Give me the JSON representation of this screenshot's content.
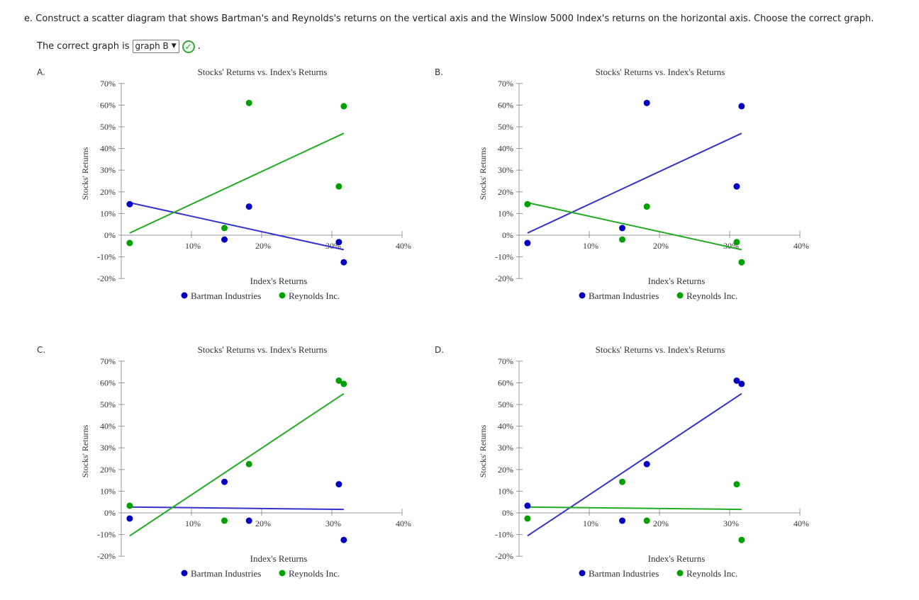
{
  "question": "e. Construct a scatter diagram that shows Bartman's and Reynolds's returns on the vertical axis and the Winslow 5000 Index's returns on the horizontal axis. Choose the correct graph.",
  "answer": {
    "prefix": "The correct graph is",
    "selected": "graph B",
    "suffix": ".",
    "status_icon": "check-circle-icon",
    "status_color": "#3aa33a"
  },
  "colors": {
    "bartman": "#0000c0",
    "reynolds": "#00a000",
    "bartman_line": "#3333cc",
    "reynolds_line": "#22aa22"
  },
  "chart_data": [
    {
      "panel": "A.",
      "type": "scatter",
      "title": "Stocks' Returns vs. Index's Returns",
      "xlabel": "Index's Returns",
      "ylabel": "Stocks' Returns",
      "xlim": [
        0,
        40
      ],
      "ylim": [
        -20,
        70
      ],
      "xticks": [
        "10%",
        "20%",
        "30%",
        "40%"
      ],
      "yticks": [
        "70%",
        "60%",
        "50%",
        "40%",
        "30%",
        "20%",
        "10%",
        "0%",
        "-10%",
        "-20%"
      ],
      "legend": "bottom",
      "series": [
        {
          "name": "Bartman Industries",
          "color": "#0000c0",
          "points": [
            [
              1.2,
              14.3
            ],
            [
              14.7,
              -2
            ],
            [
              18.2,
              13.2
            ],
            [
              31,
              -3.2
            ],
            [
              31.7,
              -12.5
            ]
          ],
          "trend": [
            [
              1.2,
              15
            ],
            [
              31.7,
              -6.7
            ]
          ]
        },
        {
          "name": "Reynolds Inc.",
          "color": "#00a000",
          "points": [
            [
              1.2,
              -3.6
            ],
            [
              14.7,
              3.3
            ],
            [
              18.2,
              61
            ],
            [
              31,
              22.5
            ],
            [
              31.7,
              59.5
            ]
          ],
          "trend": [
            [
              1.2,
              1
            ],
            [
              31.7,
              47
            ]
          ]
        }
      ]
    },
    {
      "panel": "B.",
      "type": "scatter",
      "title": "Stocks' Returns vs. Index's Returns",
      "xlabel": "Index's Returns",
      "ylabel": "Stocks' Returns",
      "xlim": [
        0,
        40
      ],
      "ylim": [
        -20,
        70
      ],
      "xticks": [
        "10%",
        "20%",
        "30%",
        "40%"
      ],
      "yticks": [
        "70%",
        "60%",
        "50%",
        "40%",
        "30%",
        "20%",
        "10%",
        "0%",
        "-10%",
        "-20%"
      ],
      "legend": "bottom",
      "series": [
        {
          "name": "Bartman Industries",
          "color": "#0000c0",
          "points": [
            [
              1.2,
              -3.6
            ],
            [
              14.7,
              3.3
            ],
            [
              18.2,
              61
            ],
            [
              31,
              22.5
            ],
            [
              31.7,
              59.5
            ]
          ],
          "trend": [
            [
              1.2,
              1
            ],
            [
              31.7,
              47
            ]
          ]
        },
        {
          "name": "Reynolds Inc.",
          "color": "#00a000",
          "points": [
            [
              1.2,
              14.3
            ],
            [
              14.7,
              -2
            ],
            [
              18.2,
              13.2
            ],
            [
              31,
              -3.2
            ],
            [
              31.7,
              -12.5
            ]
          ],
          "trend": [
            [
              1.2,
              15
            ],
            [
              31.7,
              -6.7
            ]
          ]
        }
      ]
    },
    {
      "panel": "C.",
      "type": "scatter",
      "title": "Stocks' Returns vs. Index's Returns",
      "xlabel": "Index's Returns",
      "ylabel": "Stocks' Returns",
      "xlim": [
        0,
        40
      ],
      "ylim": [
        -20,
        70
      ],
      "xticks": [
        "10%",
        "20%",
        "30%",
        "40%"
      ],
      "yticks": [
        "70%",
        "60%",
        "50%",
        "40%",
        "30%",
        "20%",
        "10%",
        "0%",
        "-10%",
        "-20%"
      ],
      "legend": "bottom",
      "series": [
        {
          "name": "Bartman Industries",
          "color": "#0000c0",
          "points": [
            [
              1.2,
              -2.6
            ],
            [
              14.7,
              14.3
            ],
            [
              18.2,
              -3.6
            ],
            [
              31,
              13.2
            ],
            [
              31.7,
              -12.5
            ]
          ],
          "trend": [
            [
              1.2,
              2.7
            ],
            [
              31.7,
              1.6
            ]
          ]
        },
        {
          "name": "Reynolds Inc.",
          "color": "#00a000",
          "points": [
            [
              1.2,
              3.3
            ],
            [
              14.7,
              -3.6
            ],
            [
              18.2,
              22.5
            ],
            [
              31,
              61
            ],
            [
              31.7,
              59.5
            ]
          ],
          "trend": [
            [
              1.2,
              -10.6
            ],
            [
              31.7,
              55
            ]
          ]
        }
      ]
    },
    {
      "panel": "D.",
      "type": "scatter",
      "title": "Stocks' Returns vs. Index's Returns",
      "xlabel": "Index's Returns",
      "ylabel": "Stocks' Returns",
      "xlim": [
        0,
        40
      ],
      "ylim": [
        -20,
        70
      ],
      "xticks": [
        "10%",
        "20%",
        "30%",
        "40%"
      ],
      "yticks": [
        "70%",
        "60%",
        "50%",
        "40%",
        "30%",
        "20%",
        "10%",
        "0%",
        "-10%",
        "-20%"
      ],
      "legend": "bottom",
      "series": [
        {
          "name": "Bartman Industries",
          "color": "#0000c0",
          "points": [
            [
              1.2,
              3.3
            ],
            [
              14.7,
              -3.6
            ],
            [
              18.2,
              22.5
            ],
            [
              31,
              61
            ],
            [
              31.7,
              59.5
            ]
          ],
          "trend": [
            [
              1.2,
              -10.6
            ],
            [
              31.7,
              55
            ]
          ]
        },
        {
          "name": "Reynolds Inc.",
          "color": "#00a000",
          "points": [
            [
              1.2,
              -2.6
            ],
            [
              14.7,
              14.3
            ],
            [
              18.2,
              -3.6
            ],
            [
              31,
              13.2
            ],
            [
              31.7,
              -12.5
            ]
          ],
          "trend": [
            [
              1.2,
              2.7
            ],
            [
              31.7,
              1.6
            ]
          ]
        }
      ]
    }
  ]
}
